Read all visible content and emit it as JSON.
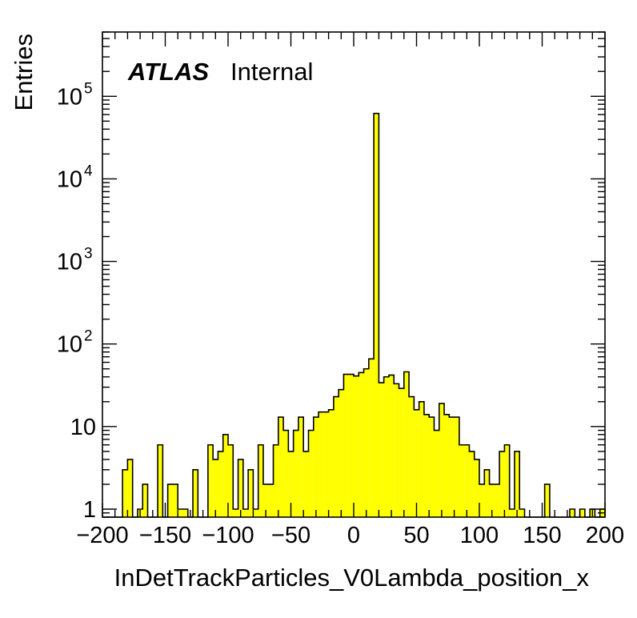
{
  "chart_data": {
    "type": "bar",
    "xlabel": "InDetTrackParticles_V0Lambda_position_x",
    "ylabel": "Entries",
    "atlas_label": "ATLAS",
    "atlas_status": "Internal",
    "xlim": [
      -200,
      200
    ],
    "ylim": [
      0.8,
      600000
    ],
    "yscale": "log",
    "bin_width": 4,
    "fill_color": "#ffff00",
    "line_color": "#000000",
    "x_tick_labels": [
      "−200",
      "−150",
      "−100",
      "−50",
      "0",
      "50",
      "100",
      "150",
      "200"
    ],
    "x_tick_values": [
      -200,
      -150,
      -100,
      -50,
      0,
      50,
      100,
      150,
      200
    ],
    "y_tick_labels": [
      {
        "base": "1",
        "exp": ""
      },
      {
        "base": "10",
        "exp": ""
      },
      {
        "base": "10",
        "exp": "2"
      },
      {
        "base": "10",
        "exp": "3"
      },
      {
        "base": "10",
        "exp": "4"
      },
      {
        "base": "10",
        "exp": "5"
      }
    ],
    "y_tick_values": [
      1,
      10,
      100,
      1000,
      10000,
      100000
    ],
    "values": [
      0,
      0,
      0,
      0,
      3,
      4,
      0,
      1,
      2,
      0,
      0,
      6,
      0,
      2,
      2,
      1,
      1,
      0,
      3,
      0,
      0,
      6,
      4,
      5,
      8,
      6,
      1,
      4,
      1,
      3,
      1,
      6,
      2,
      2,
      6,
      13,
      9,
      5,
      9,
      13,
      5,
      9,
      13,
      15,
      15,
      16,
      23,
      28,
      43,
      43,
      41,
      45,
      50,
      66,
      62000,
      34,
      40,
      42,
      33,
      29,
      46,
      23,
      16,
      20,
      14,
      13,
      9,
      19,
      14,
      13,
      13,
      6,
      6,
      5,
      4,
      2,
      3,
      2,
      2,
      5,
      6,
      1,
      5,
      1,
      0,
      0,
      0,
      0,
      2,
      0,
      0,
      0,
      0,
      1,
      0,
      1,
      0,
      1,
      0,
      1
    ]
  }
}
